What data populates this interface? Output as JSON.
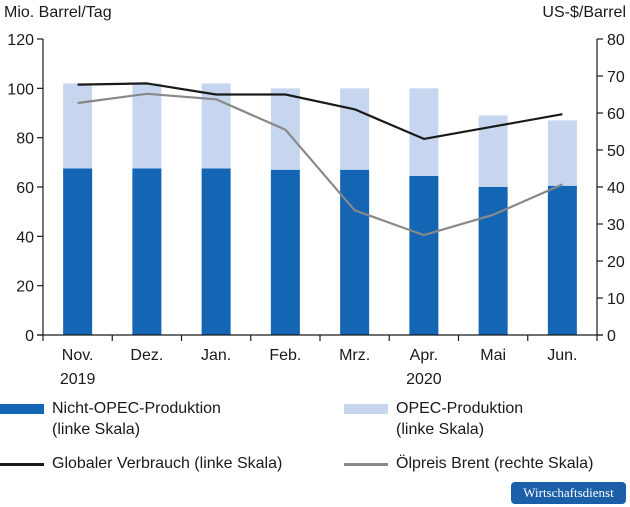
{
  "header": {
    "left_unit": "Mio. Barrel/Tag",
    "right_unit": "US-$/Barrel"
  },
  "colors": {
    "non_opec": "#1565b5",
    "opec": "#c6d6ef",
    "consumption": "#1a1a1a",
    "brent": "#888888",
    "badge": "#1a5fa8"
  },
  "chart_data": {
    "type": "bar",
    "categories": [
      "Nov.",
      "Dez.",
      "Jan.",
      "Feb.",
      "Mrz.",
      "Apr.",
      "Mai",
      "Jun."
    ],
    "year_labels": [
      {
        "after_index": 0,
        "label": "2019"
      },
      {
        "after_index": 5,
        "label": "2020"
      }
    ],
    "ylim_left": [
      0,
      120
    ],
    "yticks_left": [
      0,
      20,
      40,
      60,
      80,
      100,
      120
    ],
    "ylim_right": [
      0,
      80
    ],
    "yticks_right": [
      0,
      10,
      20,
      30,
      40,
      50,
      60,
      70,
      80
    ],
    "grid": false,
    "series": [
      {
        "name": "Nicht-OPEC-Produktion",
        "type": "stacked-bar",
        "axis": "left",
        "values": [
          67.5,
          67.5,
          67.5,
          67.0,
          67.0,
          64.5,
          60.0,
          60.5
        ]
      },
      {
        "name": "OPEC-Produktion",
        "type": "stacked-bar",
        "axis": "left",
        "values": [
          34.5,
          34.5,
          34.5,
          33.0,
          33.0,
          35.5,
          29.0,
          26.5
        ]
      },
      {
        "name": "Globaler Verbrauch",
        "type": "line",
        "axis": "left",
        "values": [
          101.5,
          102.0,
          97.5,
          97.5,
          91.5,
          79.5,
          84.5,
          89.5
        ]
      },
      {
        "name": "Ölpreis Brent",
        "type": "line",
        "axis": "right",
        "values": [
          62.7,
          65.2,
          63.7,
          55.5,
          33.7,
          27.0,
          32.5,
          40.7
        ]
      }
    ]
  },
  "legend": {
    "non_opec_line1": "Nicht-OPEC-Produktion",
    "non_opec_line2": "(linke Skala)",
    "opec_line1": "OPEC-Produktion",
    "opec_line2": "(linke Skala)",
    "consumption": "Globaler Verbrauch (linke Skala)",
    "brent": "Ölpreis Brent (rechte Skala)"
  },
  "badge": "Wirtschaftsdienst"
}
